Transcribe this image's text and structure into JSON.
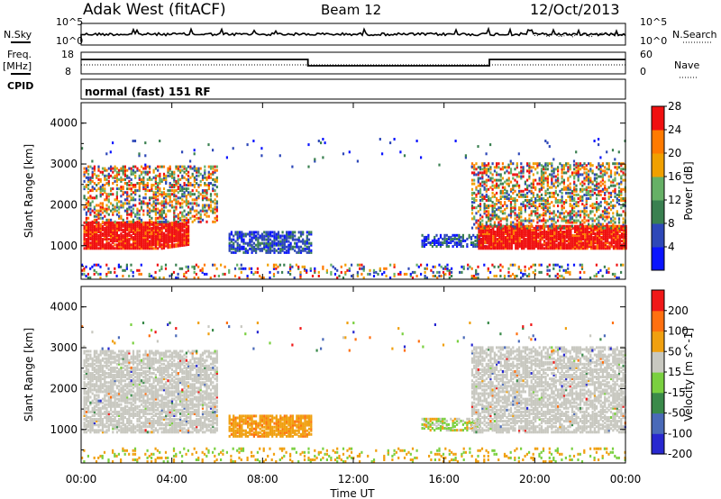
{
  "header": {
    "title": "Adak West (fitACF)",
    "beam": "Beam 12",
    "date": "12/Oct/2013"
  },
  "top_panels": {
    "nsky_label": "N.Sky",
    "nsearch_label": "N.Search",
    "sky_ticks": [
      "10^5",
      "10^0"
    ],
    "search_ticks": [
      "10^5",
      "10^0"
    ],
    "freq_label": "Freq.",
    "freq_unit": "[MHz]",
    "freq_ticks": [
      "18",
      "8"
    ],
    "nave_label": "Nave",
    "nave_ticks": [
      "60",
      "0"
    ],
    "cpid_label": "CPID",
    "cpid_text": "normal (fast) 151 RF"
  },
  "chart_data": [
    {
      "type": "heatmap",
      "title": "",
      "xlabel": "",
      "ylabel": "Slant Range [km]",
      "x_ticks": [
        "00:00",
        "04:00",
        "08:00",
        "12:00",
        "16:00",
        "20:00",
        "00:00"
      ],
      "y_ticks": [
        1000,
        2000,
        3000,
        4000
      ],
      "xlim_hours": [
        0,
        24
      ],
      "ylim": [
        180,
        4500
      ],
      "colorbar": {
        "label": "Power [dB]",
        "ticks": [
          "4",
          "8",
          "12",
          "16",
          "20",
          "24",
          "28"
        ],
        "colors": [
          "#0a14ff",
          "#2e48b8",
          "#3a8050",
          "#66b066",
          "#f0a000",
          "#ff7a00",
          "#f01010"
        ]
      },
      "echo_regions": [
        {
          "x": [
            0.1,
            4.7
          ],
          "y": [
            900,
            1550
          ],
          "level": "28+"
        },
        {
          "x": [
            0.1,
            6.0
          ],
          "y": [
            1550,
            2900
          ],
          "level": "4-20"
        },
        {
          "x": [
            6.5,
            10.1
          ],
          "y": [
            800,
            1300
          ],
          "level": "4-8"
        },
        {
          "x": [
            15.0,
            17.8
          ],
          "y": [
            950,
            1250
          ],
          "level": "4-8"
        },
        {
          "x": [
            17.5,
            24.0
          ],
          "y": [
            900,
            1450
          ],
          "level": "28+"
        },
        {
          "x": [
            17.2,
            24.0
          ],
          "y": [
            1400,
            3000
          ],
          "level": "4-24"
        },
        {
          "x": [
            0.0,
            24.0
          ],
          "y": [
            180,
            500
          ],
          "level": "4-20"
        }
      ]
    },
    {
      "type": "heatmap",
      "title": "",
      "xlabel": "Time UT",
      "ylabel": "Slant Range [km]",
      "x_ticks": [
        "00:00",
        "04:00",
        "08:00",
        "12:00",
        "16:00",
        "20:00",
        "00:00"
      ],
      "y_ticks": [
        1000,
        2000,
        3000,
        4000
      ],
      "xlim_hours": [
        0,
        24
      ],
      "ylim": [
        180,
        4500
      ],
      "colorbar": {
        "label": "Velocity [m s^-1]",
        "ticks": [
          "200",
          "100",
          "50",
          "15",
          "-15",
          "-50",
          "-100",
          "-200"
        ],
        "colors": [
          "#2828d0",
          "#4a6ab8",
          "#3a8a4a",
          "#7ad040",
          "#c8c8c0",
          "#f0a010",
          "#ff7010",
          "#f01818"
        ]
      },
      "echo_regions": [
        {
          "x": [
            0.1,
            6.0
          ],
          "y": [
            900,
            2900
          ],
          "level": "-15 to 15"
        },
        {
          "x": [
            6.5,
            10.1
          ],
          "y": [
            800,
            1300
          ],
          "level": "-50 to -15"
        },
        {
          "x": [
            15.0,
            17.6
          ],
          "y": [
            950,
            1250
          ],
          "level": "-50 to 15"
        },
        {
          "x": [
            17.2,
            24.0
          ],
          "y": [
            900,
            3000
          ],
          "level": "-15 to 15"
        },
        {
          "x": [
            0.0,
            24.0
          ],
          "y": [
            180,
            500
          ],
          "level": "-50 to 50"
        }
      ]
    }
  ]
}
